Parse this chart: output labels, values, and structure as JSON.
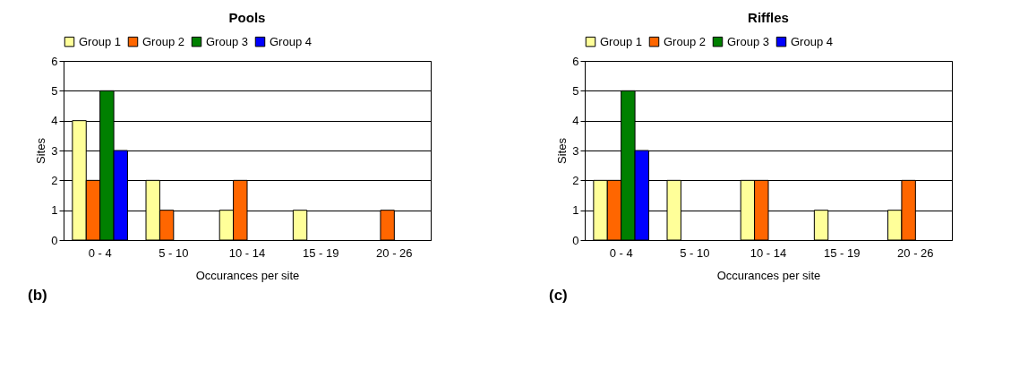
{
  "chart_data": [
    {
      "type": "bar",
      "title": "Pools",
      "xlabel": "Occurances per site",
      "ylabel": "Sites",
      "categories": [
        "0 - 4",
        "5 - 10",
        "10 - 14",
        "15 - 19",
        "20 - 26"
      ],
      "series": [
        {
          "name": "Group 1",
          "color": "#ffff99",
          "values": [
            4,
            2,
            1,
            1,
            0
          ]
        },
        {
          "name": "Group 2",
          "color": "#ff6600",
          "values": [
            2,
            1,
            2,
            0,
            1
          ]
        },
        {
          "name": "Group 3",
          "color": "#008000",
          "values": [
            5,
            0,
            0,
            0,
            0
          ]
        },
        {
          "name": "Group 4",
          "color": "#0000ff",
          "values": [
            3,
            0,
            0,
            0,
            0
          ]
        }
      ],
      "ylim": [
        0,
        6
      ],
      "yticks": [
        0,
        1,
        2,
        3,
        4,
        5,
        6
      ],
      "grid": "y",
      "legend": "top",
      "annotations": [
        "(b)"
      ]
    },
    {
      "type": "bar",
      "title": "Riffles",
      "xlabel": "Occurances per site",
      "ylabel": "Sites",
      "categories": [
        "0 - 4",
        "5 - 10",
        "10 - 14",
        "15 - 19",
        "20 - 26"
      ],
      "series": [
        {
          "name": "Group 1",
          "color": "#ffff99",
          "values": [
            2,
            2,
            2,
            1,
            1
          ]
        },
        {
          "name": "Group 2",
          "color": "#ff6600",
          "values": [
            2,
            0,
            2,
            0,
            2
          ]
        },
        {
          "name": "Group 3",
          "color": "#008000",
          "values": [
            5,
            0,
            0,
            0,
            0
          ]
        },
        {
          "name": "Group 4",
          "color": "#0000ff",
          "values": [
            3,
            0,
            0,
            0,
            0
          ]
        }
      ],
      "ylim": [
        0,
        6
      ],
      "yticks": [
        0,
        1,
        2,
        3,
        4,
        5,
        6
      ],
      "grid": "y",
      "legend": "top",
      "annotations": [
        "(c)"
      ]
    }
  ]
}
